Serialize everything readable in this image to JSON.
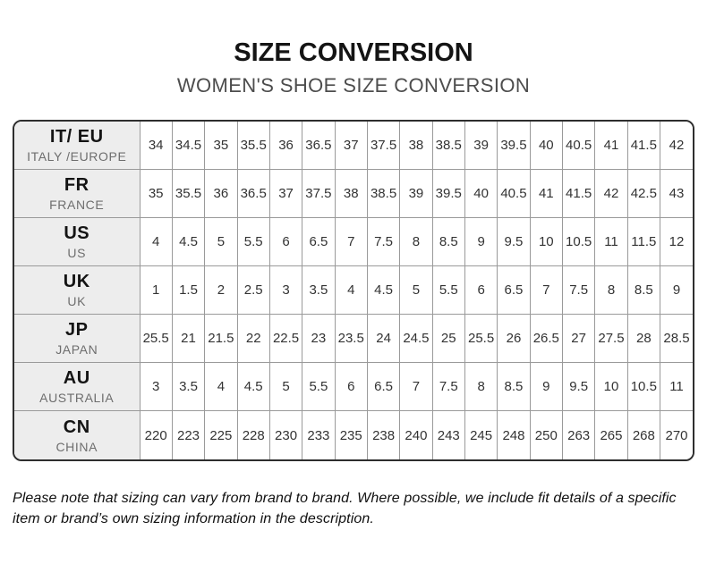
{
  "header": {
    "title": "SIZE CONVERSION",
    "subtitle": "WOMEN'S SHOE SIZE CONVERSION"
  },
  "table": {
    "rows": [
      {
        "code": "IT/ EU",
        "region": "ITALY /EUROPE",
        "values": [
          "34",
          "34.5",
          "35",
          "35.5",
          "36",
          "36.5",
          "37",
          "37.5",
          "38",
          "38.5",
          "39",
          "39.5",
          "40",
          "40.5",
          "41",
          "41.5",
          "42"
        ]
      },
      {
        "code": "FR",
        "region": "FRANCE",
        "values": [
          "35",
          "35.5",
          "36",
          "36.5",
          "37",
          "37.5",
          "38",
          "38.5",
          "39",
          "39.5",
          "40",
          "40.5",
          "41",
          "41.5",
          "42",
          "42.5",
          "43"
        ]
      },
      {
        "code": "US",
        "region": "US",
        "values": [
          "4",
          "4.5",
          "5",
          "5.5",
          "6",
          "6.5",
          "7",
          "7.5",
          "8",
          "8.5",
          "9",
          "9.5",
          "10",
          "10.5",
          "11",
          "11.5",
          "12"
        ]
      },
      {
        "code": "UK",
        "region": "UK",
        "values": [
          "1",
          "1.5",
          "2",
          "2.5",
          "3",
          "3.5",
          "4",
          "4.5",
          "5",
          "5.5",
          "6",
          "6.5",
          "7",
          "7.5",
          "8",
          "8.5",
          "9"
        ]
      },
      {
        "code": "JP",
        "region": "JAPAN",
        "values": [
          "25.5",
          "21",
          "21.5",
          "22",
          "22.5",
          "23",
          "23.5",
          "24",
          "24.5",
          "25",
          "25.5",
          "26",
          "26.5",
          "27",
          "27.5",
          "28",
          "28.5"
        ]
      },
      {
        "code": "AU",
        "region": "AUSTRALIA",
        "values": [
          "3",
          "3.5",
          "4",
          "4.5",
          "5",
          "5.5",
          "6",
          "6.5",
          "7",
          "7.5",
          "8",
          "8.5",
          "9",
          "9.5",
          "10",
          "10.5",
          "11"
        ]
      },
      {
        "code": "CN",
        "region": "CHINA",
        "values": [
          "220",
          "223",
          "225",
          "228",
          "230",
          "233",
          "235",
          "238",
          "240",
          "243",
          "245",
          "248",
          "250",
          "263",
          "265",
          "268",
          "270"
        ]
      }
    ]
  },
  "footer": {
    "note": "Please note that sizing can vary from brand to brand. Where possible, we include fit details of a specific item or brand’s own sizing information in the description."
  },
  "colors": {
    "outer_border": "#2e2e2e",
    "grid_line": "#9a9a9a",
    "header_cell_bg": "#ededed",
    "title_color": "#141414",
    "subtitle_color": "#4d4d4d",
    "value_color": "#333333",
    "region_color": "#6e6e6e"
  }
}
